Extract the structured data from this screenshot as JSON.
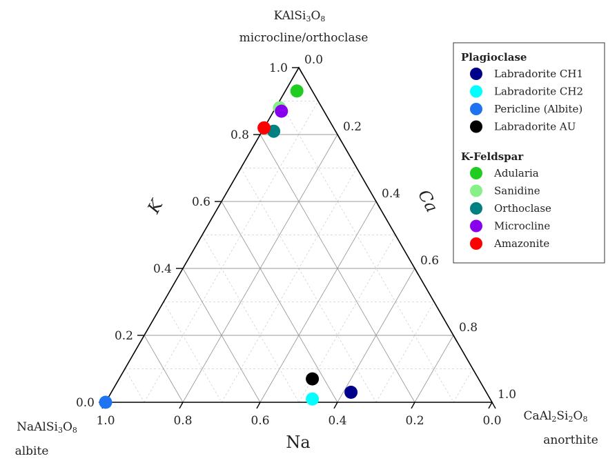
{
  "chart_data": {
    "type": "scatter",
    "subtype": "ternary",
    "axes": {
      "K": {
        "label": "K",
        "ticks": [
          "0.0",
          "0.2",
          "0.4",
          "0.6",
          "0.8",
          "1.0"
        ],
        "range": [
          0,
          1
        ]
      },
      "Ca": {
        "label": "Ca",
        "ticks": [
          "0.0",
          "0.2",
          "0.4",
          "0.6",
          "0.8",
          "1.0"
        ],
        "range": [
          0,
          1
        ]
      },
      "Na": {
        "label": "Na",
        "ticks": [
          "1.0",
          "0.8",
          "0.6",
          "0.4",
          "0.2",
          "0.0"
        ],
        "range": [
          0,
          1
        ]
      }
    },
    "corners": {
      "top": {
        "formula_parts": [
          "KAlSi",
          "3",
          "O",
          "8"
        ],
        "name": "microcline/orthoclase"
      },
      "left": {
        "formula_parts": [
          "NaAlSi",
          "3",
          "O",
          "8"
        ],
        "name": "albite"
      },
      "right": {
        "formula_parts": [
          "CaAl",
          "2",
          "Si",
          "2",
          "O",
          "8"
        ],
        "name": "anorthite"
      }
    },
    "grid": true,
    "legend_position": "top-right",
    "groups": [
      {
        "title": "Plagioclase",
        "series": [
          {
            "name": "Labradorite CH1",
            "color": "#00008b",
            "K": 0.03,
            "Ca": 0.62,
            "Na": 0.35
          },
          {
            "name": "Labradorite CH2",
            "color": "#00ffff",
            "K": 0.01,
            "Ca": 0.53,
            "Na": 0.46
          },
          {
            "name": "Pericline (Albite)",
            "color": "#1e73f0",
            "K": 0.0,
            "Ca": 0.0,
            "Na": 1.0
          },
          {
            "name": "Labradorite AU",
            "color": "#000000",
            "K": 0.07,
            "Ca": 0.5,
            "Na": 0.43
          }
        ]
      },
      {
        "title": "K-Feldspar",
        "series": [
          {
            "name": "Adularia",
            "color": "#1fcc1f",
            "K": 0.93,
            "Ca": 0.03,
            "Na": 0.04
          },
          {
            "name": "Sanidine",
            "color": "#88f088",
            "K": 0.88,
            "Ca": 0.01,
            "Na": 0.11
          },
          {
            "name": "Orthoclase",
            "color": "#008080",
            "K": 0.81,
            "Ca": 0.03,
            "Na": 0.16
          },
          {
            "name": "Microcline",
            "color": "#8800ee",
            "K": 0.87,
            "Ca": 0.02,
            "Na": 0.11
          },
          {
            "name": "Amazonite",
            "color": "#ff0000",
            "K": 0.82,
            "Ca": 0.0,
            "Na": 0.18
          }
        ]
      }
    ]
  }
}
